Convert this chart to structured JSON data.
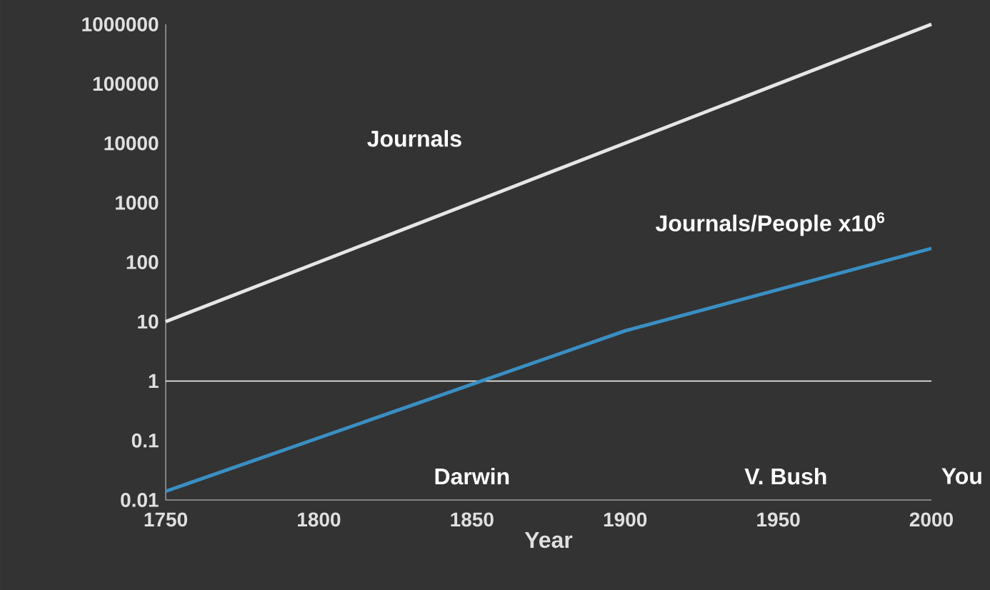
{
  "chart_data": {
    "type": "line",
    "xlabel": "Year",
    "log": "y",
    "series": [
      {
        "name": "Journals",
        "color": "#e6e6e6",
        "x": [
          1750,
          2000
        ],
        "values": [
          10,
          1000000
        ]
      },
      {
        "name": "Journals/People x10$^{6}$",
        "color": "#3a8fc4",
        "x": [
          1750,
          1900,
          2000
        ],
        "values": [
          0.014,
          7,
          170
        ]
      }
    ],
    "xlim": [
      1750,
      2000
    ],
    "xticks": [
      1750,
      1800,
      1850,
      1900,
      1950,
      2000
    ],
    "ylim": [
      0.01,
      1000000
    ],
    "yticks": [
      0.01,
      0.1,
      1,
      10,
      100,
      1000,
      10000,
      100000,
      1000000
    ],
    "ref_lines": [
      {
        "axis": "y",
        "value": 1,
        "color": "#ffffff"
      }
    ],
    "annotations": [
      "Darwin",
      "V. Bush",
      "You"
    ]
  }
}
